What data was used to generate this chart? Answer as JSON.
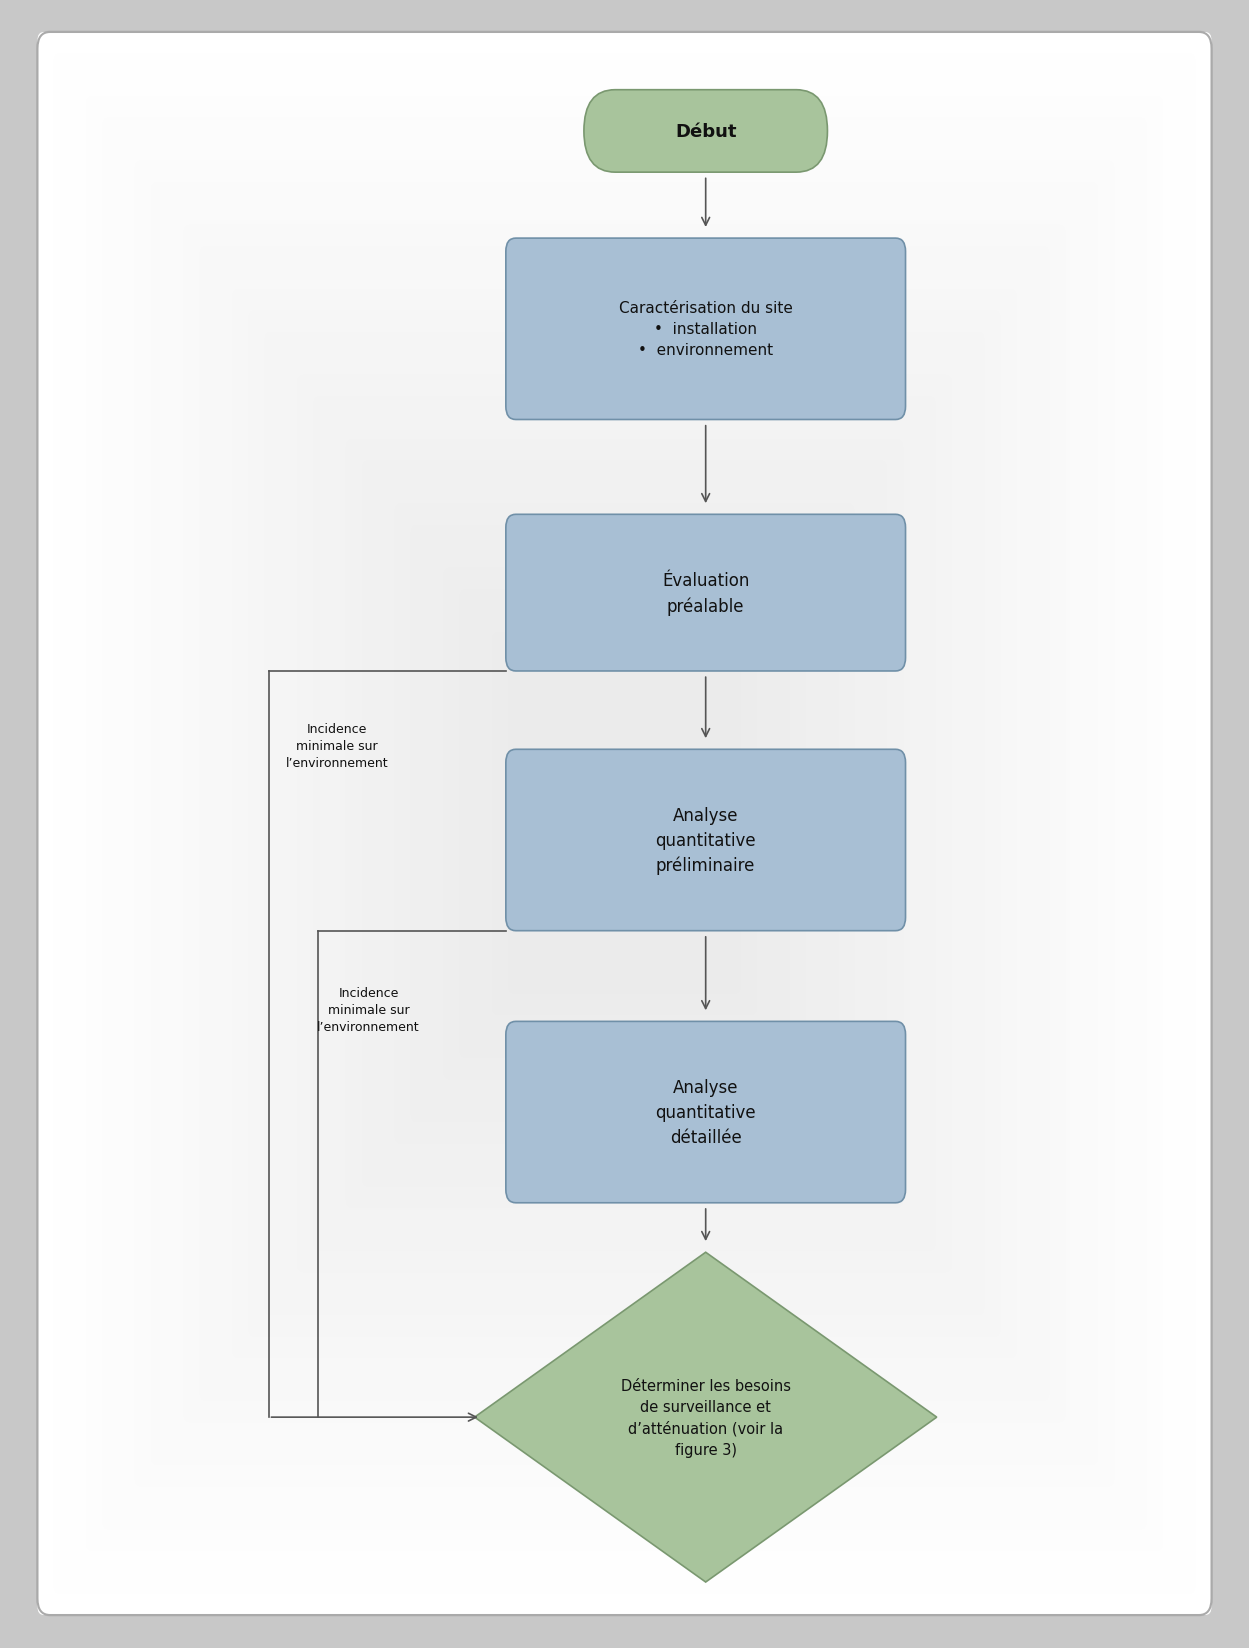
{
  "bg_color": "#d8d8d8",
  "inner_bg": "#ececec",
  "box_fill_blue": "#a8bfd4",
  "box_fill_green": "#a8c49c",
  "box_edge_blue": "#7090a8",
  "box_edge_green": "#7a9870",
  "arrow_color": "#555555",
  "text_color": "#111111",
  "debut_text": "Début",
  "box1_text": "Caractérisation du site\n•  installation\n•  environnement",
  "box2_text": "Évaluation\npréalable",
  "box3_text": "Analyse\nquantitative\npréliminaire",
  "box4_text": "Analyse\nquantitative\ndétaillée",
  "diamond_text": "Déterminer les besoins\nde surveillance et\nd’atténuation (voir la\nfigure 3)",
  "label1_text": "Incidence\nminimale sur\nl’environnement",
  "label2_text": "Incidence\nminimale sur\nl’environnement",
  "fig_width": 12.49,
  "fig_height": 16.49
}
